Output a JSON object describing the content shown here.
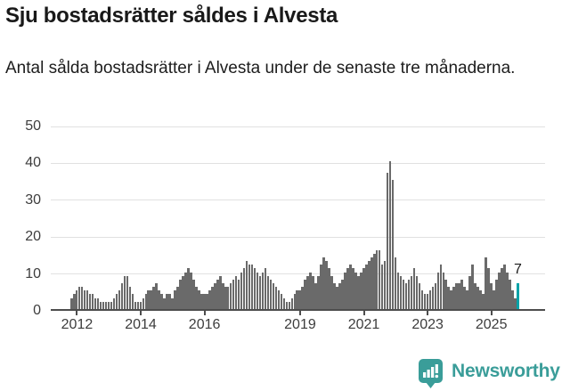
{
  "header": {
    "title": "Sju bostadsrätter såldes i Alvesta",
    "subtitle": "Antal sålda bostadsrätter i Alvesta under de senaste tre månaderna."
  },
  "chart_data": {
    "type": "bar",
    "title": "Sju bostadsrätter såldes i Alvesta",
    "frequency": "monthly",
    "x_start": "2011-11",
    "x_end": "2025-11",
    "values": [
      3,
      4,
      5,
      6,
      6,
      5,
      5,
      4,
      4,
      3,
      3,
      2,
      2,
      2,
      2,
      2,
      3,
      4,
      5,
      7,
      9,
      9,
      6,
      4,
      2,
      2,
      2,
      3,
      4,
      5,
      5,
      6,
      7,
      5,
      4,
      3,
      4,
      4,
      3,
      5,
      6,
      8,
      9,
      10,
      11,
      10,
      8,
      6,
      5,
      4,
      4,
      4,
      5,
      6,
      7,
      8,
      9,
      7,
      6,
      6,
      7,
      8,
      9,
      8,
      10,
      11,
      13,
      12,
      12,
      11,
      10,
      9,
      10,
      11,
      9,
      8,
      7,
      6,
      5,
      4,
      3,
      2,
      2,
      3,
      4,
      5,
      5,
      6,
      8,
      9,
      10,
      9,
      7,
      9,
      12,
      14,
      13,
      11,
      9,
      7,
      6,
      7,
      8,
      10,
      11,
      12,
      11,
      10,
      9,
      10,
      11,
      12,
      13,
      14,
      15,
      16,
      16,
      12,
      13,
      37,
      40,
      35,
      14,
      10,
      9,
      8,
      7,
      8,
      9,
      11,
      9,
      7,
      5,
      4,
      4,
      5,
      6,
      7,
      10,
      12,
      10,
      8,
      6,
      5,
      6,
      7,
      7,
      8,
      6,
      5,
      9,
      12,
      7,
      6,
      5,
      4,
      14,
      11,
      7,
      5,
      8,
      10,
      11,
      12,
      10,
      8,
      5,
      3,
      7
    ],
    "highlight_last": true,
    "last_value": 7,
    "last_value_label": "7",
    "y_ticks": [
      0,
      10,
      20,
      30,
      40,
      50
    ],
    "ylim": [
      0,
      50
    ],
    "x_tick_labels": [
      "2012",
      "2014",
      "2016",
      "2019",
      "2021",
      "2023",
      "2025"
    ],
    "grid": true,
    "legend": "none",
    "bar_color": "#6a6a6a",
    "highlight_color": "#00a2a8"
  },
  "footer": {
    "brand": "Newsworthy",
    "brand_color": "#3a9d99",
    "logo_icon": "bar-chart-speech-bubble"
  },
  "colors": {
    "text": "#191919",
    "axis_text": "#3d3d3d",
    "axis_line": "#4d4d4d",
    "gridline": "#e1e1e1"
  }
}
